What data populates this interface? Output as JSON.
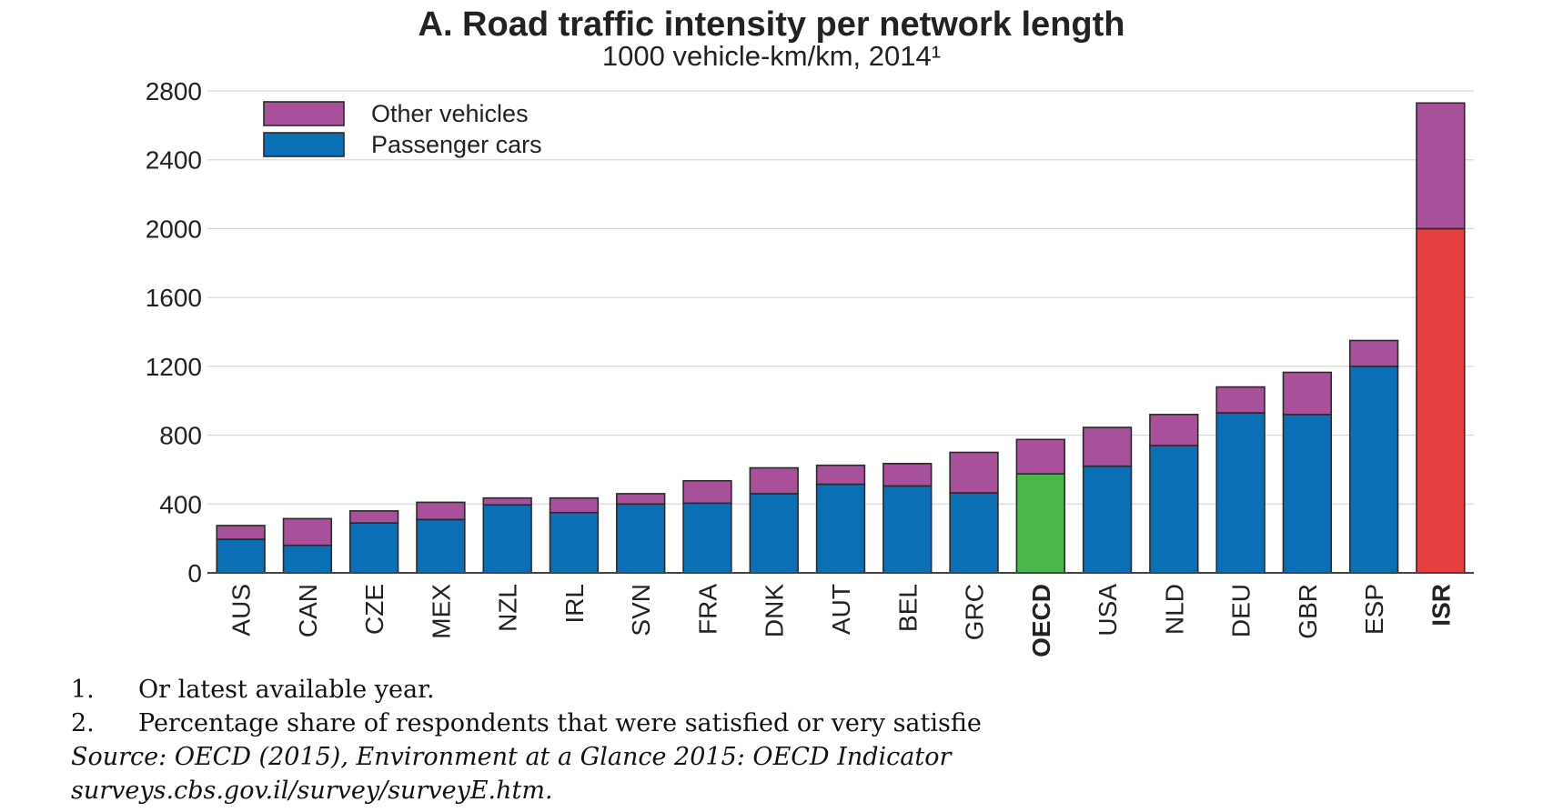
{
  "chart_data": {
    "type": "bar",
    "stacked": true,
    "title": "A. Road traffic intensity per network length",
    "subtitle": "1000 vehicle-km/km, 2014¹",
    "ylim": [
      0,
      2800
    ],
    "yticks": [
      0,
      400,
      800,
      1200,
      1600,
      2000,
      2400,
      2800
    ],
    "grid": true,
    "legend_position": "top-left",
    "categories": [
      "AUS",
      "CAN",
      "CZE",
      "MEX",
      "NZL",
      "IRL",
      "SVN",
      "FRA",
      "DNK",
      "AUT",
      "BEL",
      "GRC",
      "OECD",
      "USA",
      "NLD",
      "DEU",
      "GBR",
      "ESP",
      "ISR"
    ],
    "bold_categories": [
      "OECD",
      "ISR"
    ],
    "series": [
      {
        "name": "Passenger cars",
        "color": "#0a6fb5",
        "values": [
          195,
          160,
          290,
          310,
          395,
          350,
          400,
          405,
          460,
          515,
          505,
          465,
          575,
          620,
          740,
          930,
          920,
          1200,
          2000
        ]
      },
      {
        "name": "Other vehicles",
        "color": "#a8509a",
        "values": [
          80,
          155,
          70,
          100,
          40,
          85,
          60,
          130,
          150,
          110,
          130,
          235,
          200,
          225,
          180,
          150,
          245,
          150,
          730
        ]
      }
    ],
    "highlight": {
      "OECD": {
        "Passenger cars": "#4bb84b"
      },
      "ISR": {
        "Passenger cars": "#e84040"
      }
    }
  },
  "notes": {
    "note1": {
      "num": "1.",
      "text": "Or latest available year."
    },
    "note2": {
      "num": "2.",
      "text": "Percentage share of respondents that were satisfied or very satisfie"
    },
    "source_prefix": "Source: OECD (2015), ",
    "source_italic": "Environment at a Glance 2015: OECD Indicator",
    "source_line2": "surveys.cbs.gov.il/survey/surveyE.htm."
  }
}
